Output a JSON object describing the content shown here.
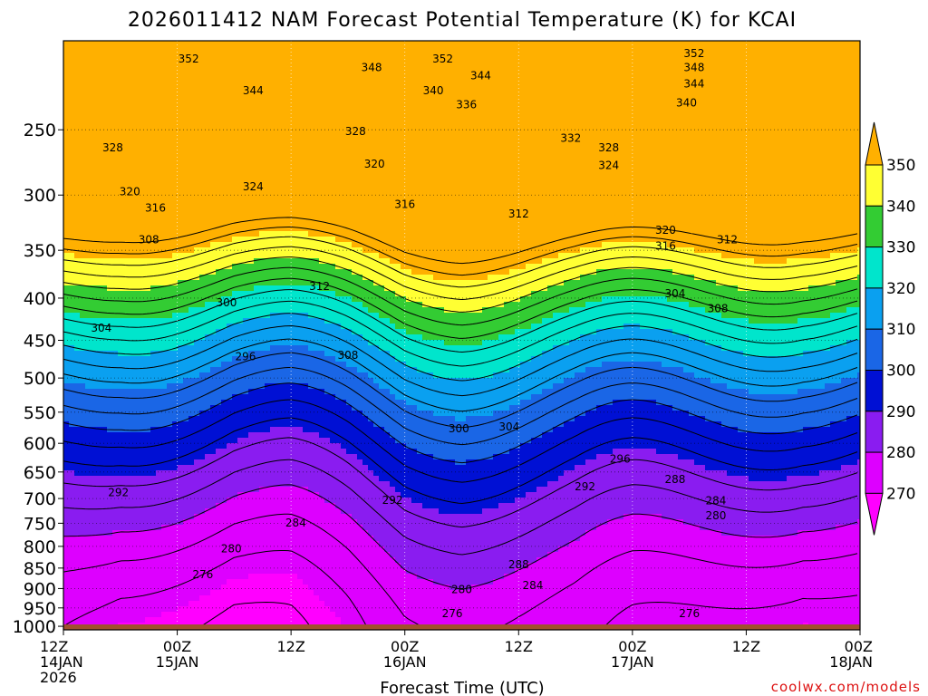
{
  "chart_data": {
    "type": "contour",
    "title": "2026011412 NAM Forecast Potential Temperature (K) for KCAI",
    "xlabel": "Forecast Time (UTC)",
    "credit": "coolwx.com/models",
    "y_scale": "log-pressure",
    "ylim": [
      1010,
      195
    ],
    "xlim": [
      0,
      84
    ],
    "grid": true,
    "legend": "right",
    "y_ticks": [
      250,
      300,
      350,
      400,
      450,
      500,
      550,
      600,
      650,
      700,
      750,
      800,
      850,
      900,
      950,
      1000
    ],
    "x_ticks": [
      {
        "x": 0,
        "l1": "12Z",
        "l2": "14JAN",
        "l3": "2026"
      },
      {
        "x": 12,
        "l1": "00Z",
        "l2": "15JAN"
      },
      {
        "x": 24,
        "l1": "12Z"
      },
      {
        "x": 36,
        "l1": "00Z",
        "l2": "16JAN"
      },
      {
        "x": 48,
        "l1": "12Z"
      },
      {
        "x": 60,
        "l1": "00Z",
        "l2": "17JAN"
      },
      {
        "x": 72,
        "l1": "12Z"
      },
      {
        "x": 84,
        "l1": "00Z",
        "l2": "18JAN"
      }
    ],
    "colorbar": {
      "levels": [
        270,
        280,
        290,
        300,
        310,
        320,
        330,
        340,
        350
      ],
      "labels": [
        "270",
        "280",
        "290",
        "300",
        "310",
        "320",
        "330",
        "340",
        "350"
      ],
      "colors": [
        "#ff00ff",
        "#dd00ff",
        "#8a1cf0",
        "#0010d4",
        "#1a66e6",
        "#0aa0f0",
        "#00e5cc",
        "#33cc33",
        "#ffff33",
        "#ffb000"
      ]
    },
    "theta_at_1000hPa": [
      {
        "x": 0,
        "theta": 272
      },
      {
        "x": 6,
        "theta": 269
      },
      {
        "x": 12,
        "theta": 268
      },
      {
        "x": 18,
        "theta": 267
      },
      {
        "x": 24,
        "theta": 268
      },
      {
        "x": 30,
        "theta": 271
      },
      {
        "x": 36,
        "theta": 275
      },
      {
        "x": 42,
        "theta": 276
      },
      {
        "x": 48,
        "theta": 275
      },
      {
        "x": 54,
        "theta": 274
      },
      {
        "x": 60,
        "theta": 272
      },
      {
        "x": 66,
        "theta": 271
      },
      {
        "x": 72,
        "theta": 270
      },
      {
        "x": 78,
        "theta": 269
      },
      {
        "x": 84,
        "theta": 270
      }
    ],
    "ground_fill": "#a0522d",
    "contour_labels": [
      {
        "text": "352",
        "x": 13.2,
        "p": 205
      },
      {
        "text": "348",
        "x": 32.5,
        "p": 210
      },
      {
        "text": "352",
        "x": 40.0,
        "p": 205
      },
      {
        "text": "344",
        "x": 44.0,
        "p": 215
      },
      {
        "text": "352",
        "x": 66.5,
        "p": 202
      },
      {
        "text": "348",
        "x": 66.5,
        "p": 210
      },
      {
        "text": "344",
        "x": 20.0,
        "p": 224
      },
      {
        "text": "340",
        "x": 39.0,
        "p": 224
      },
      {
        "text": "336",
        "x": 42.5,
        "p": 233
      },
      {
        "text": "344",
        "x": 66.5,
        "p": 220
      },
      {
        "text": "340",
        "x": 65.7,
        "p": 232
      },
      {
        "text": "328",
        "x": 30.8,
        "p": 251
      },
      {
        "text": "332",
        "x": 53.5,
        "p": 256
      },
      {
        "text": "328",
        "x": 5.2,
        "p": 263
      },
      {
        "text": "328",
        "x": 57.5,
        "p": 263
      },
      {
        "text": "324",
        "x": 57.5,
        "p": 276
      },
      {
        "text": "320",
        "x": 32.8,
        "p": 275
      },
      {
        "text": "320",
        "x": 7.0,
        "p": 297
      },
      {
        "text": "324",
        "x": 20.0,
        "p": 293
      },
      {
        "text": "316",
        "x": 9.7,
        "p": 311
      },
      {
        "text": "316",
        "x": 36.0,
        "p": 308
      },
      {
        "text": "312",
        "x": 48.0,
        "p": 316
      },
      {
        "text": "320",
        "x": 63.5,
        "p": 331
      },
      {
        "text": "312",
        "x": 70.0,
        "p": 340
      },
      {
        "text": "316",
        "x": 63.5,
        "p": 346
      },
      {
        "text": "308",
        "x": 9.0,
        "p": 340
      },
      {
        "text": "312",
        "x": 27.0,
        "p": 387
      },
      {
        "text": "304",
        "x": 64.5,
        "p": 395
      },
      {
        "text": "300",
        "x": 17.2,
        "p": 405
      },
      {
        "text": "308",
        "x": 69.0,
        "p": 412
      },
      {
        "text": "304",
        "x": 4.0,
        "p": 435
      },
      {
        "text": "296",
        "x": 19.2,
        "p": 471
      },
      {
        "text": "308",
        "x": 30.0,
        "p": 469
      },
      {
        "text": "300",
        "x": 41.7,
        "p": 576
      },
      {
        "text": "304",
        "x": 47.0,
        "p": 573
      },
      {
        "text": "296",
        "x": 58.7,
        "p": 627
      },
      {
        "text": "292",
        "x": 5.8,
        "p": 688
      },
      {
        "text": "292",
        "x": 34.7,
        "p": 703
      },
      {
        "text": "292",
        "x": 55.0,
        "p": 677
      },
      {
        "text": "288",
        "x": 64.5,
        "p": 664
      },
      {
        "text": "284",
        "x": 24.5,
        "p": 749
      },
      {
        "text": "284",
        "x": 68.8,
        "p": 704
      },
      {
        "text": "280",
        "x": 68.8,
        "p": 734
      },
      {
        "text": "280",
        "x": 17.7,
        "p": 805
      },
      {
        "text": "276",
        "x": 14.7,
        "p": 866
      },
      {
        "text": "288",
        "x": 48.0,
        "p": 842
      },
      {
        "text": "284",
        "x": 49.5,
        "p": 892
      },
      {
        "text": "280",
        "x": 42.0,
        "p": 903
      },
      {
        "text": "276",
        "x": 41.0,
        "p": 965
      },
      {
        "text": "276",
        "x": 66.0,
        "p": 965
      }
    ]
  }
}
